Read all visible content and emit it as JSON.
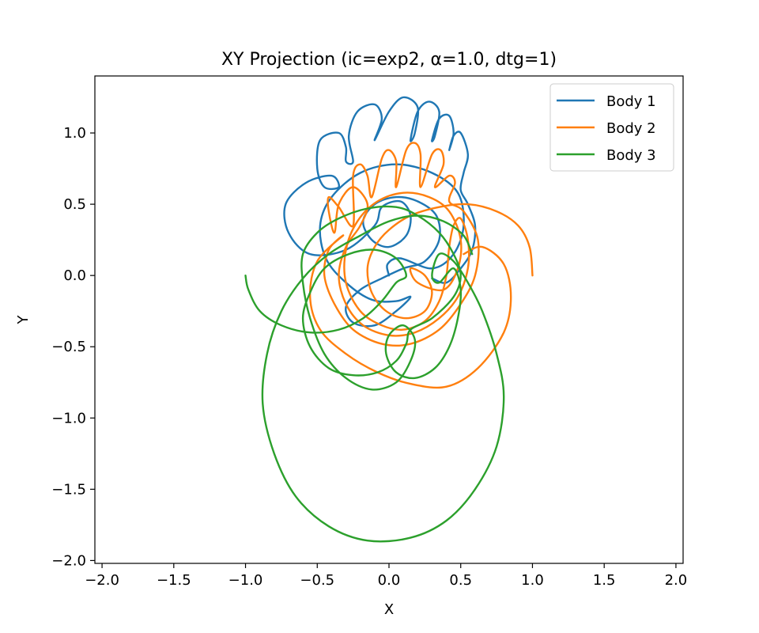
{
  "chart_data": {
    "type": "line",
    "title": "XY Projection (ic=exp2, α=1.0, dtg=1)",
    "xlabel": "X",
    "ylabel": "Y",
    "xlim": [
      -2.05,
      2.05
    ],
    "ylim": [
      -2.02,
      1.4
    ],
    "grid": false,
    "legend_position": "top-right",
    "x_ticks": [
      -2.0,
      -1.5,
      -1.0,
      -0.5,
      0.0,
      0.5,
      1.0,
      1.5,
      2.0
    ],
    "x_tick_labels": [
      "−2.0",
      "−1.5",
      "−1.0",
      "−0.5",
      "0.0",
      "0.5",
      "1.0",
      "1.5",
      "2.0"
    ],
    "y_ticks": [
      -2.0,
      -1.5,
      -1.0,
      -0.5,
      0.0,
      0.5,
      1.0
    ],
    "y_tick_labels": [
      "−2.0",
      "−1.5",
      "−1.0",
      "−0.5",
      "0.0",
      "0.5",
      "1.0"
    ],
    "series": [
      {
        "name": "Body 1",
        "color": "#1f77b4",
        "points": [
          [
            0.0,
            0.0
          ],
          [
            -0.01,
            0.08
          ],
          [
            0.08,
            0.12
          ],
          [
            0.3,
            0.05
          ],
          [
            0.45,
            0.15
          ],
          [
            0.52,
            0.35
          ],
          [
            0.48,
            0.58
          ],
          [
            0.3,
            0.72
          ],
          [
            0.05,
            0.78
          ],
          [
            -0.2,
            0.72
          ],
          [
            -0.4,
            0.55
          ],
          [
            -0.48,
            0.35
          ],
          [
            -0.44,
            0.12
          ],
          [
            -0.3,
            -0.05
          ],
          [
            -0.12,
            -0.17
          ],
          [
            0.05,
            -0.18
          ],
          [
            0.15,
            -0.15
          ],
          [
            0.05,
            -0.25
          ],
          [
            -0.1,
            -0.35
          ],
          [
            -0.25,
            -0.33
          ],
          [
            -0.3,
            -0.22
          ],
          [
            -0.2,
            -0.1
          ],
          [
            -0.05,
            -0.02
          ],
          [
            0.1,
            0.05
          ],
          [
            0.25,
            0.1
          ],
          [
            0.35,
            0.25
          ],
          [
            0.33,
            0.42
          ],
          [
            0.2,
            0.52
          ],
          [
            0.05,
            0.55
          ],
          [
            -0.1,
            0.5
          ],
          [
            -0.18,
            0.38
          ],
          [
            -0.12,
            0.25
          ],
          [
            0.0,
            0.2
          ],
          [
            0.12,
            0.28
          ],
          [
            0.15,
            0.42
          ],
          [
            0.08,
            0.52
          ],
          [
            -0.05,
            0.48
          ],
          [
            -0.1,
            0.35
          ],
          [
            -0.3,
            0.18
          ],
          [
            -0.55,
            0.15
          ],
          [
            -0.7,
            0.3
          ],
          [
            -0.72,
            0.5
          ],
          [
            -0.58,
            0.65
          ],
          [
            -0.4,
            0.7
          ],
          [
            -0.35,
            0.62
          ],
          [
            -0.45,
            0.62
          ],
          [
            -0.5,
            0.75
          ],
          [
            -0.48,
            0.95
          ],
          [
            -0.35,
            1.0
          ],
          [
            -0.3,
            0.9
          ],
          [
            -0.3,
            0.8
          ],
          [
            -0.25,
            0.8
          ],
          [
            -0.28,
            0.98
          ],
          [
            -0.22,
            1.15
          ],
          [
            -0.1,
            1.2
          ],
          [
            -0.05,
            1.1
          ],
          [
            -0.1,
            0.95
          ],
          [
            0.0,
            1.15
          ],
          [
            0.1,
            1.25
          ],
          [
            0.2,
            1.18
          ],
          [
            0.18,
            1.0
          ],
          [
            0.15,
            0.95
          ],
          [
            0.2,
            1.15
          ],
          [
            0.28,
            1.22
          ],
          [
            0.35,
            1.15
          ],
          [
            0.32,
            0.98
          ],
          [
            0.3,
            0.95
          ],
          [
            0.35,
            1.1
          ],
          [
            0.42,
            1.12
          ],
          [
            0.45,
            1.0
          ],
          [
            0.42,
            0.88
          ],
          [
            0.45,
            0.98
          ],
          [
            0.5,
            1.0
          ],
          [
            0.55,
            0.85
          ],
          [
            0.52,
            0.72
          ],
          [
            0.5,
            0.6
          ],
          [
            0.55,
            0.5
          ],
          [
            0.6,
            0.35
          ],
          [
            0.58,
            0.18
          ],
          [
            0.5,
            0.05
          ],
          [
            0.4,
            -0.05
          ],
          [
            0.3,
            -0.02
          ]
        ]
      },
      {
        "name": "Body 2",
        "color": "#ff7f0e",
        "points": [
          [
            1.0,
            0.0
          ],
          [
            0.98,
            0.2
          ],
          [
            0.9,
            0.35
          ],
          [
            0.75,
            0.45
          ],
          [
            0.55,
            0.5
          ],
          [
            0.35,
            0.48
          ],
          [
            0.15,
            0.42
          ],
          [
            0.0,
            0.32
          ],
          [
            -0.1,
            0.2
          ],
          [
            -0.15,
            0.05
          ],
          [
            -0.12,
            -0.12
          ],
          [
            -0.02,
            -0.25
          ],
          [
            0.12,
            -0.3
          ],
          [
            0.25,
            -0.25
          ],
          [
            0.3,
            -0.12
          ],
          [
            0.25,
            0.0
          ],
          [
            0.15,
            0.05
          ],
          [
            0.2,
            -0.05
          ],
          [
            0.38,
            -0.1
          ],
          [
            0.48,
            0.05
          ],
          [
            0.5,
            0.25
          ],
          [
            0.42,
            0.45
          ],
          [
            0.28,
            0.55
          ],
          [
            0.1,
            0.58
          ],
          [
            -0.08,
            0.52
          ],
          [
            -0.22,
            0.38
          ],
          [
            -0.3,
            0.18
          ],
          [
            -0.3,
            -0.05
          ],
          [
            -0.2,
            -0.25
          ],
          [
            -0.05,
            -0.35
          ],
          [
            0.1,
            -0.38
          ],
          [
            0.25,
            -0.32
          ],
          [
            0.35,
            -0.18
          ],
          [
            0.4,
            0.0
          ],
          [
            0.42,
            0.2
          ],
          [
            0.45,
            0.35
          ],
          [
            0.5,
            0.4
          ],
          [
            0.55,
            0.25
          ],
          [
            0.55,
            0.05
          ],
          [
            0.48,
            -0.15
          ],
          [
            0.35,
            -0.3
          ],
          [
            0.18,
            -0.4
          ],
          [
            0.0,
            -0.42
          ],
          [
            -0.18,
            -0.35
          ],
          [
            -0.3,
            -0.2
          ],
          [
            -0.35,
            0.0
          ],
          [
            -0.3,
            0.2
          ],
          [
            -0.2,
            0.35
          ],
          [
            -0.15,
            0.5
          ],
          [
            -0.25,
            0.62
          ],
          [
            -0.35,
            0.5
          ],
          [
            -0.38,
            0.3
          ],
          [
            -0.42,
            0.45
          ],
          [
            -0.42,
            0.55
          ],
          [
            -0.35,
            0.48
          ],
          [
            -0.25,
            0.35
          ],
          [
            -0.25,
            0.7
          ],
          [
            -0.2,
            0.78
          ],
          [
            -0.15,
            0.7
          ],
          [
            -0.12,
            0.55
          ],
          [
            -0.05,
            0.82
          ],
          [
            0.0,
            0.88
          ],
          [
            0.05,
            0.8
          ],
          [
            0.05,
            0.62
          ],
          [
            0.12,
            0.88
          ],
          [
            0.18,
            0.93
          ],
          [
            0.22,
            0.85
          ],
          [
            0.22,
            0.62
          ],
          [
            0.3,
            0.85
          ],
          [
            0.36,
            0.88
          ],
          [
            0.38,
            0.78
          ],
          [
            0.32,
            0.62
          ],
          [
            0.42,
            0.7
          ],
          [
            0.46,
            0.65
          ],
          [
            0.42,
            0.52
          ],
          [
            0.52,
            0.45
          ],
          [
            0.62,
            0.25
          ],
          [
            0.6,
            0.0
          ],
          [
            0.5,
            -0.2
          ],
          [
            0.35,
            -0.38
          ],
          [
            0.15,
            -0.48
          ],
          [
            -0.05,
            -0.48
          ],
          [
            -0.25,
            -0.38
          ],
          [
            -0.38,
            -0.2
          ],
          [
            -0.45,
            0.0
          ],
          [
            -0.42,
            0.18
          ],
          [
            -0.32,
            0.28
          ],
          [
            -0.5,
            0.1
          ],
          [
            -0.55,
            -0.15
          ],
          [
            -0.48,
            -0.38
          ],
          [
            -0.3,
            -0.55
          ],
          [
            -0.08,
            -0.68
          ],
          [
            0.15,
            -0.76
          ],
          [
            0.4,
            -0.78
          ],
          [
            0.62,
            -0.65
          ],
          [
            0.8,
            -0.4
          ],
          [
            0.85,
            -0.15
          ],
          [
            0.8,
            0.08
          ],
          [
            0.65,
            0.2
          ],
          [
            0.52,
            0.15
          ]
        ]
      },
      {
        "name": "Body 3",
        "color": "#2ca02c",
        "points": [
          [
            -1.0,
            0.0
          ],
          [
            -0.98,
            -0.1
          ],
          [
            -0.9,
            -0.25
          ],
          [
            -0.75,
            -0.35
          ],
          [
            -0.55,
            -0.4
          ],
          [
            -0.35,
            -0.38
          ],
          [
            -0.18,
            -0.3
          ],
          [
            -0.05,
            -0.18
          ],
          [
            0.05,
            -0.05
          ],
          [
            0.12,
            0.0
          ],
          [
            0.05,
            0.12
          ],
          [
            -0.1,
            0.18
          ],
          [
            -0.28,
            0.15
          ],
          [
            -0.45,
            0.05
          ],
          [
            -0.55,
            -0.12
          ],
          [
            -0.6,
            -0.3
          ],
          [
            -0.55,
            -0.5
          ],
          [
            -0.42,
            -0.65
          ],
          [
            -0.25,
            -0.7
          ],
          [
            -0.08,
            -0.68
          ],
          [
            0.05,
            -0.6
          ],
          [
            0.12,
            -0.48
          ],
          [
            0.15,
            -0.38
          ],
          [
            0.3,
            -0.3
          ],
          [
            0.45,
            -0.15
          ],
          [
            0.5,
            0.0
          ],
          [
            0.45,
            0.15
          ],
          [
            0.35,
            0.3
          ],
          [
            0.2,
            0.42
          ],
          [
            0.05,
            0.48
          ],
          [
            -0.15,
            0.47
          ],
          [
            -0.35,
            0.4
          ],
          [
            -0.5,
            0.3
          ],
          [
            -0.6,
            0.15
          ],
          [
            -0.6,
            -0.05
          ],
          [
            -0.55,
            -0.3
          ],
          [
            -0.45,
            -0.55
          ],
          [
            -0.3,
            -0.72
          ],
          [
            -0.12,
            -0.8
          ],
          [
            0.05,
            -0.75
          ],
          [
            0.15,
            -0.6
          ],
          [
            0.18,
            -0.45
          ],
          [
            0.1,
            -0.35
          ],
          [
            0.0,
            -0.42
          ],
          [
            -0.02,
            -0.55
          ],
          [
            0.05,
            -0.68
          ],
          [
            0.18,
            -0.72
          ],
          [
            0.32,
            -0.65
          ],
          [
            0.42,
            -0.5
          ],
          [
            0.48,
            -0.3
          ],
          [
            0.5,
            -0.1
          ],
          [
            0.45,
            0.05
          ],
          [
            0.35,
            -0.05
          ],
          [
            0.3,
            0.0
          ],
          [
            0.35,
            0.15
          ],
          [
            0.45,
            0.1
          ],
          [
            0.55,
            -0.05
          ],
          [
            0.65,
            -0.25
          ],
          [
            0.75,
            -0.55
          ],
          [
            0.8,
            -0.85
          ],
          [
            0.75,
            -1.2
          ],
          [
            0.6,
            -1.5
          ],
          [
            0.4,
            -1.72
          ],
          [
            0.15,
            -1.84
          ],
          [
            -0.15,
            -1.86
          ],
          [
            -0.42,
            -1.76
          ],
          [
            -0.65,
            -1.55
          ],
          [
            -0.8,
            -1.25
          ],
          [
            -0.88,
            -0.9
          ],
          [
            -0.85,
            -0.55
          ],
          [
            -0.75,
            -0.25
          ],
          [
            -0.6,
            -0.02
          ],
          [
            -0.42,
            0.15
          ],
          [
            -0.2,
            0.28
          ],
          [
            0.0,
            0.38
          ],
          [
            0.2,
            0.42
          ],
          [
            0.38,
            0.38
          ],
          [
            0.52,
            0.28
          ],
          [
            0.58,
            0.15
          ]
        ]
      }
    ]
  }
}
